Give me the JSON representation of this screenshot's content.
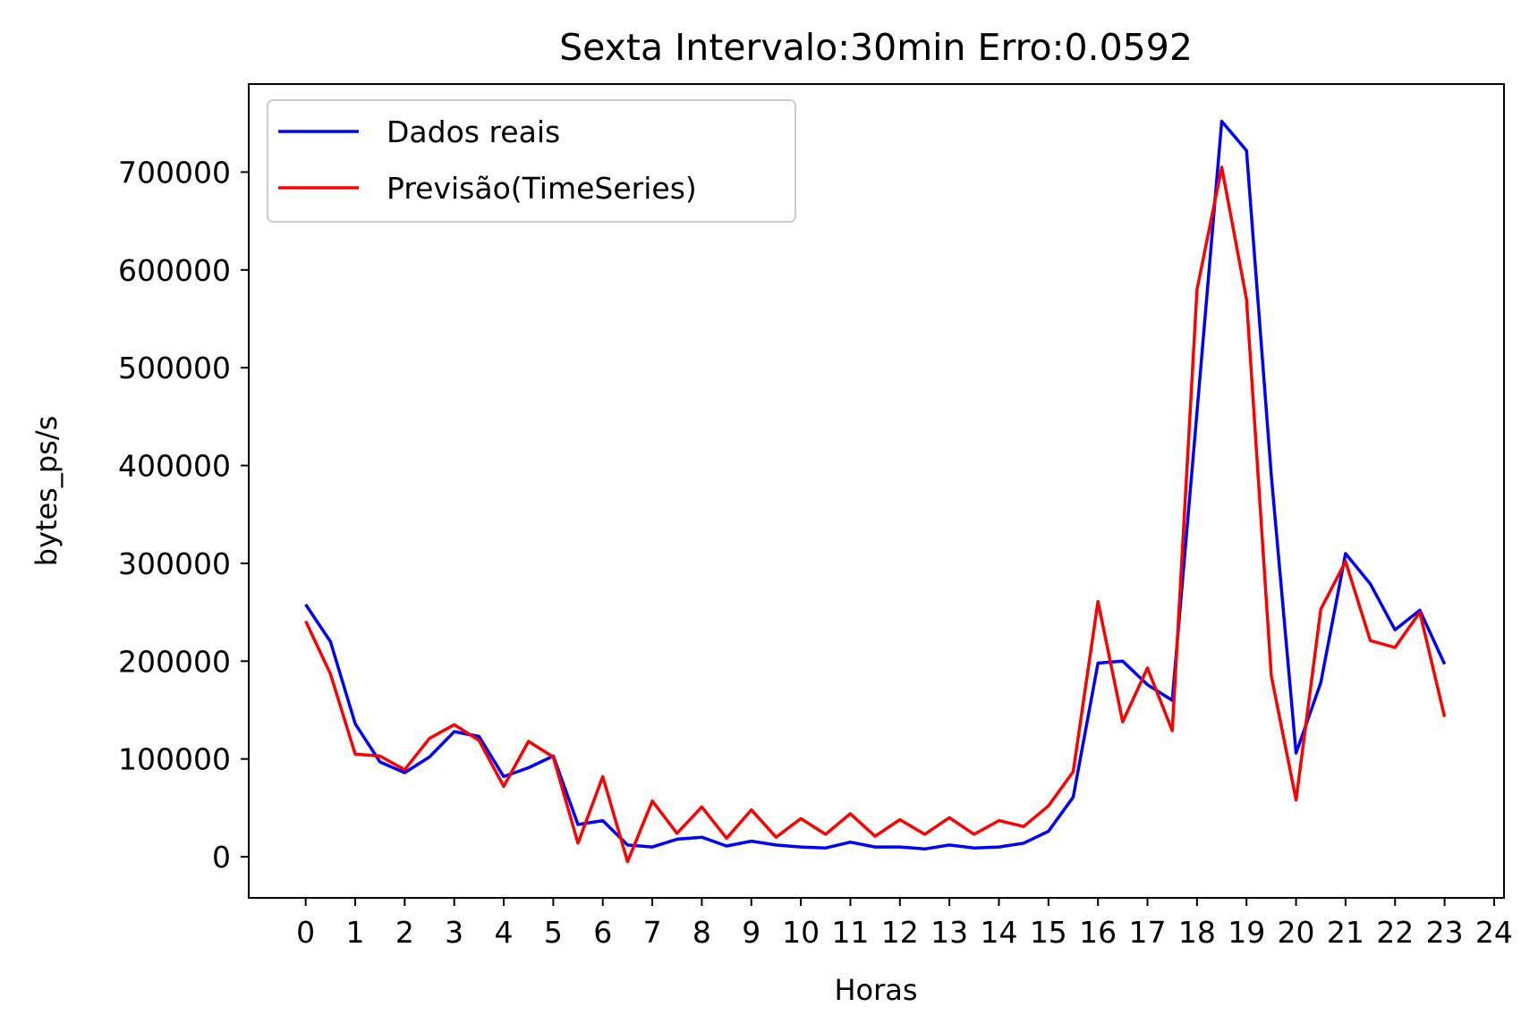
{
  "chart_data": {
    "type": "line",
    "title": "Sexta Intervalo:30min Erro:0.0592",
    "xlabel": "Horas",
    "ylabel": "bytes_ps/s",
    "xlim": [
      -1.15,
      24.2
    ],
    "ylim": [
      -42000,
      790000
    ],
    "x_ticks": [
      0,
      1,
      2,
      3,
      4,
      5,
      6,
      7,
      8,
      9,
      10,
      11,
      12,
      13,
      14,
      15,
      16,
      17,
      18,
      19,
      20,
      21,
      22,
      23,
      24
    ],
    "x_tick_labels": [
      "0",
      "1",
      "2",
      "3",
      "4",
      "5",
      "6",
      "7",
      "8",
      "9",
      "10",
      "11",
      "12",
      "13",
      "14",
      "15",
      "16",
      "17",
      "18",
      "19",
      "20",
      "21",
      "22",
      "23",
      "24"
    ],
    "y_ticks": [
      0,
      100000,
      200000,
      300000,
      400000,
      500000,
      600000,
      700000
    ],
    "y_tick_labels": [
      "0",
      "100000",
      "200000",
      "300000",
      "400000",
      "500000",
      "600000",
      "700000"
    ],
    "grid": false,
    "legend_position": "top-left",
    "x": [
      0,
      0.5,
      1,
      1.5,
      2,
      2.5,
      3,
      3.5,
      4,
      4.5,
      5,
      5.5,
      6,
      6.5,
      7,
      7.5,
      8,
      8.5,
      9,
      9.5,
      10,
      10.5,
      11,
      11.5,
      12,
      12.5,
      13,
      13.5,
      14,
      14.5,
      15,
      15.5,
      16,
      16.5,
      17,
      17.5,
      18,
      18.5,
      19,
      19.5,
      20,
      20.5,
      21,
      21.5,
      22,
      22.5,
      23
    ],
    "series": [
      {
        "name": "Dados reais",
        "color": "#0000ff",
        "values": [
          258000,
          220000,
          136000,
          97000,
          86000,
          102000,
          128000,
          123000,
          82000,
          91000,
          103000,
          33000,
          37000,
          12000,
          10000,
          18000,
          20000,
          11000,
          16000,
          12000,
          10000,
          9000,
          15000,
          10000,
          10000,
          8000,
          12000,
          9000,
          10000,
          14000,
          26000,
          61000,
          198000,
          200000,
          176000,
          160000,
          455000,
          752000,
          722000,
          390000,
          106000,
          178000,
          310000,
          279000,
          232000,
          252000,
          197000
        ]
      },
      {
        "name": "Previsão(TimeSeries)",
        "color": "#ff0000",
        "values": [
          241000,
          187000,
          105000,
          103000,
          89000,
          121000,
          135000,
          119000,
          72000,
          118000,
          102000,
          14000,
          82000,
          -5000,
          57000,
          24000,
          51000,
          19000,
          48000,
          20000,
          39000,
          23000,
          44000,
          21000,
          38000,
          23000,
          40000,
          23000,
          37000,
          31000,
          52000,
          87000,
          261000,
          138000,
          193000,
          129000,
          580000,
          705000,
          570000,
          185000,
          58000,
          253000,
          302000,
          221000,
          214000,
          250000,
          143000
        ]
      }
    ]
  }
}
